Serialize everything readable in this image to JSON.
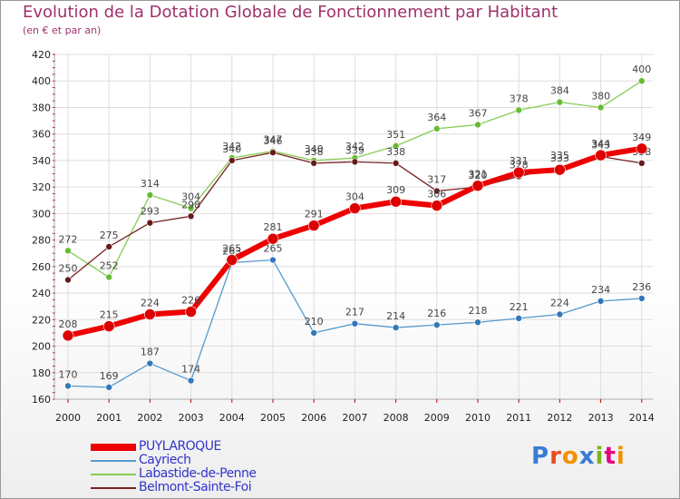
{
  "header": {
    "title": "Evolution de la Dotation Globale de Fonctionnement par Habitant",
    "subtitle": "(en € et par an)"
  },
  "logo": {
    "letters": [
      "P",
      "r",
      "o",
      "x",
      "i",
      "t",
      "i"
    ],
    "colors": [
      "#3a7bd5",
      "#e94e1b",
      "#f39200",
      "#3a7bd5",
      "#7ab51d",
      "#e6007e",
      "#f39200"
    ]
  },
  "chart_data": {
    "type": "line",
    "title": "Evolution de la Dotation Globale de Fonctionnement par Habitant",
    "subtitle": "(en € et par an)",
    "xlabel": "",
    "ylabel": "",
    "categories": [
      "2000",
      "2001",
      "2002",
      "2003",
      "2004",
      "2005",
      "2006",
      "2007",
      "2008",
      "2009",
      "2010",
      "2011",
      "2012",
      "2013",
      "2014"
    ],
    "ylim": [
      160,
      420
    ],
    "yticks": [
      "160",
      "180",
      "200",
      "220",
      "240",
      "260",
      "280",
      "300",
      "320",
      "340",
      "360",
      "380",
      "400",
      "420"
    ],
    "grid": true,
    "series": [
      {
        "name": "Labastide-de-Penne",
        "color": "#88cc55",
        "dot": "#66bb33",
        "width": 1.3,
        "radius": 3.5,
        "values": [
          272,
          252,
          314,
          304,
          342,
          347,
          340,
          342,
          351,
          364,
          367,
          378,
          384,
          380,
          400
        ],
        "labels": [
          "272",
          "252",
          "314",
          "304",
          "342",
          "347",
          "340",
          "342",
          "351",
          "364",
          "367",
          "378",
          "384",
          "380",
          "400"
        ]
      },
      {
        "name": "Belmont-Sainte-Foi",
        "color": "#772222",
        "dot": "#661a1a",
        "width": 1.3,
        "radius": 3.5,
        "values": [
          250,
          275,
          293,
          298,
          340,
          346,
          338,
          339,
          338,
          317,
          320,
          328,
          335,
          343,
          338
        ],
        "labels": [
          "250",
          "275",
          "293",
          "298",
          "340",
          "346",
          "338",
          "339",
          "338",
          "317",
          "320",
          "328",
          "335",
          "343",
          "338"
        ]
      },
      {
        "name": "Cayriech",
        "color": "#5599cc",
        "dot": "#3377bb",
        "width": 1.3,
        "radius": 3.5,
        "values": [
          170,
          169,
          187,
          174,
          263,
          265,
          210,
          217,
          214,
          216,
          218,
          221,
          224,
          234,
          236
        ],
        "labels": [
          "170",
          "169",
          "187",
          "174",
          "263",
          "265",
          "210",
          "217",
          "214",
          "216",
          "218",
          "221",
          "224",
          "234",
          "236"
        ]
      },
      {
        "name": "PUYLAROQUE",
        "color": "#ee0000",
        "dot": "#dd0000",
        "width": 6,
        "radius": 6,
        "values": [
          208,
          215,
          224,
          226,
          265,
          281,
          291,
          304,
          309,
          306,
          321,
          331,
          333,
          344,
          349
        ],
        "labels": [
          "208",
          "215",
          "224",
          "226",
          "265",
          "281",
          "291",
          "304",
          "309",
          "306",
          "321",
          "331",
          "333",
          "344",
          "349"
        ]
      }
    ],
    "legend": [
      "PUYLAROQUE",
      "Cayriech",
      "Labastide-de-Penne",
      "Belmont-Sainte-Foi"
    ],
    "legend_placement": "bottom-left"
  }
}
